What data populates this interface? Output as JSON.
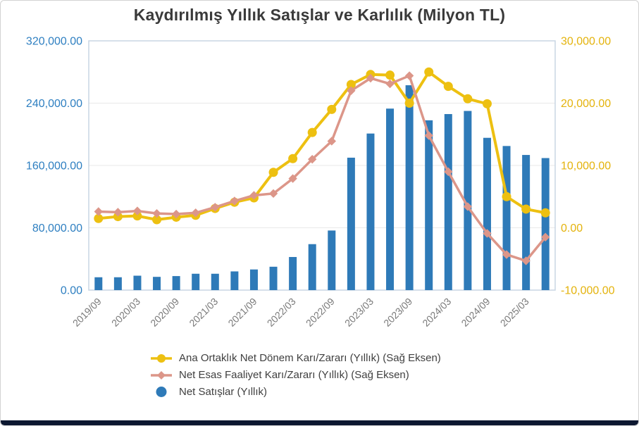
{
  "colors": {
    "title": "#3a3a3a",
    "grid": "#e8e8e8",
    "plot_border": "#c9d6e3",
    "x_label": "#7a7a7a",
    "legend_text": "#3f3f3f",
    "footer_bar": "#0c1730"
  },
  "chart_data": {
    "type": "bar",
    "subtype": "combo-bar-line-dual-axis",
    "title": "Kaydırılmış Yıllık Satışlar ve Karlılık (Milyon TL)",
    "grid": "horizontal",
    "legend_position": "bottom-left",
    "categories": [
      "2019/09",
      "2019/12",
      "2020/03",
      "2020/06",
      "2020/09",
      "2020/12",
      "2021/03",
      "2021/06",
      "2021/09",
      "2021/12",
      "2022/03",
      "2022/06",
      "2022/09",
      "2022/12",
      "2023/03",
      "2023/06",
      "2023/09",
      "2023/12",
      "2024/03",
      "2024/06",
      "2024/09",
      "2024/12",
      "2025/03",
      "2025/06"
    ],
    "x_tick_labels": [
      "2019/09",
      "2020/03",
      "2020/09",
      "2021/03",
      "2021/09",
      "2022/03",
      "2022/09",
      "2023/03",
      "2023/09",
      "2024/03",
      "2024/09",
      "2025/03"
    ],
    "x_tick_every": 2,
    "left_axis": {
      "min": 0,
      "max": 320000,
      "tick_values": [
        320000,
        240000,
        160000,
        80000,
        0
      ],
      "tick_labels": [
        "320,000.00",
        "240,000.00",
        "160,000.00",
        "80,000.00",
        "0.00"
      ],
      "label_color": "#2e7fc1"
    },
    "right_axis": {
      "min": -10000,
      "max": 30000,
      "tick_values": [
        30000,
        20000,
        10000,
        0,
        -10000
      ],
      "tick_labels": [
        "30,000.00",
        "20,000.00",
        "10,000.00",
        "0.00",
        "-10,000.00"
      ],
      "label_color": "#e4b30c"
    },
    "series": [
      {
        "name": "Net Satışlar (Yıllık)",
        "type": "bar",
        "axis": "left",
        "color": "#2e7ab8",
        "marker": "circle",
        "values": [
          16500,
          16500,
          18500,
          17000,
          18000,
          21000,
          21000,
          24000,
          26500,
          30000,
          42500,
          59000,
          76500,
          170000,
          201000,
          233000,
          263000,
          218000,
          226000,
          230000,
          195500,
          185000,
          173500,
          169500
        ]
      },
      {
        "name": "Ana Ortaklık Net Dönem Karı/Zararı (Yıllık) (Sağ Eksen)",
        "type": "line",
        "axis": "right",
        "color": "#edc011",
        "marker": "circle",
        "values": [
          1500,
          1800,
          1900,
          1300,
          1700,
          2000,
          3100,
          4100,
          4800,
          8900,
          11100,
          15300,
          19000,
          23000,
          24600,
          24500,
          20000,
          25000,
          22700,
          20700,
          19900,
          5000,
          3000,
          2400
        ]
      },
      {
        "name": "Net Esas Faaliyet Karı/Zararı (Yıllık) (Sağ Eksen)",
        "type": "line",
        "axis": "right",
        "color": "#dc9689",
        "marker": "diamond",
        "values": [
          2600,
          2500,
          2700,
          2300,
          2200,
          2400,
          3300,
          4300,
          5200,
          5500,
          7900,
          11000,
          13900,
          22000,
          24000,
          23100,
          24400,
          14800,
          9000,
          3400,
          -900,
          -4300,
          -5300,
          -1500
        ]
      }
    ]
  }
}
